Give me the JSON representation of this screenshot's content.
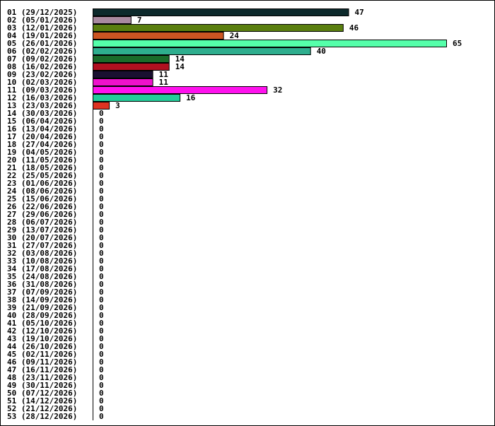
{
  "chart_data": {
    "type": "bar",
    "orientation": "horizontal",
    "title": "",
    "xlabel": "",
    "ylabel": "",
    "xlim": [
      0,
      65
    ],
    "grid": false,
    "legend": "none",
    "categories": [
      "01 (29/12/2025)",
      "02 (05/01/2026)",
      "03 (12/01/2026)",
      "04 (19/01/2026)",
      "05 (26/01/2026)",
      "06 (02/02/2026)",
      "07 (09/02/2026)",
      "08 (16/02/2026)",
      "09 (23/02/2026)",
      "10 (02/03/2026)",
      "11 (09/03/2026)",
      "12 (16/03/2026)",
      "13 (23/03/2026)",
      "14 (30/03/2026)",
      "15 (06/04/2026)",
      "16 (13/04/2026)",
      "17 (20/04/2026)",
      "18 (27/04/2026)",
      "19 (04/05/2026)",
      "20 (11/05/2026)",
      "21 (18/05/2026)",
      "22 (25/05/2026)",
      "23 (01/06/2026)",
      "24 (08/06/2026)",
      "25 (15/06/2026)",
      "26 (22/06/2026)",
      "27 (29/06/2026)",
      "28 (06/07/2026)",
      "29 (13/07/2026)",
      "30 (20/07/2026)",
      "31 (27/07/2026)",
      "32 (03/08/2026)",
      "33 (10/08/2026)",
      "34 (17/08/2026)",
      "35 (24/08/2026)",
      "36 (31/08/2026)",
      "37 (07/09/2026)",
      "38 (14/09/2026)",
      "39 (21/09/2026)",
      "40 (28/09/2026)",
      "41 (05/10/2026)",
      "42 (12/10/2026)",
      "43 (19/10/2026)",
      "44 (26/10/2026)",
      "45 (02/11/2026)",
      "46 (09/11/2026)",
      "47 (16/11/2026)",
      "48 (23/11/2026)",
      "49 (30/11/2026)",
      "50 (07/12/2026)",
      "51 (14/12/2026)",
      "52 (21/12/2026)",
      "53 (28/12/2026)"
    ],
    "values": [
      47,
      7,
      46,
      24,
      65,
      40,
      14,
      14,
      11,
      11,
      32,
      16,
      3,
      0,
      0,
      0,
      0,
      0,
      0,
      0,
      0,
      0,
      0,
      0,
      0,
      0,
      0,
      0,
      0,
      0,
      0,
      0,
      0,
      0,
      0,
      0,
      0,
      0,
      0,
      0,
      0,
      0,
      0,
      0,
      0,
      0,
      0,
      0,
      0,
      0,
      0,
      0,
      0
    ],
    "colors": [
      "#0d2a2c",
      "#a98aa0",
      "#5a7f0f",
      "#cc5522",
      "#55ffaa",
      "#2eae8e",
      "#1a6b2a",
      "#b01020",
      "#1a1030",
      "#ee11cc",
      "#ff11ee",
      "#22cc99",
      "#dd3322"
    ]
  }
}
